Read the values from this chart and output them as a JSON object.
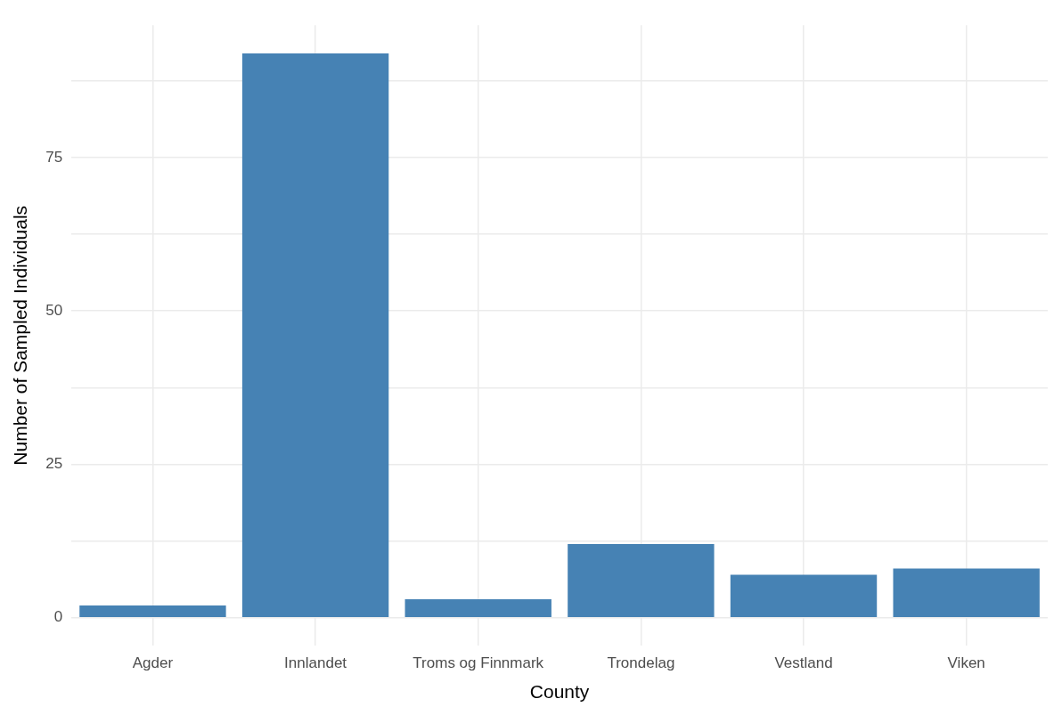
{
  "chart_data": {
    "type": "bar",
    "xlabel": "County",
    "ylabel": "Number of Sampled Individuals",
    "categories": [
      "Agder",
      "Innlandet",
      "Troms og Finnmark",
      "Trondelag",
      "Vestland",
      "Viken"
    ],
    "values": [
      2,
      92,
      3,
      12,
      7,
      8
    ],
    "color": "#4682b4",
    "ylim": [
      -4.6,
      96.6
    ],
    "yticks": [
      0,
      {
        "value": 12.5,
        "label": null
      },
      25,
      {
        "value": 37.5,
        "label": null
      },
      50,
      {
        "value": 62.5,
        "label": null
      },
      75,
      {
        "value": 87.5,
        "label": null
      }
    ],
    "grid": true
  }
}
